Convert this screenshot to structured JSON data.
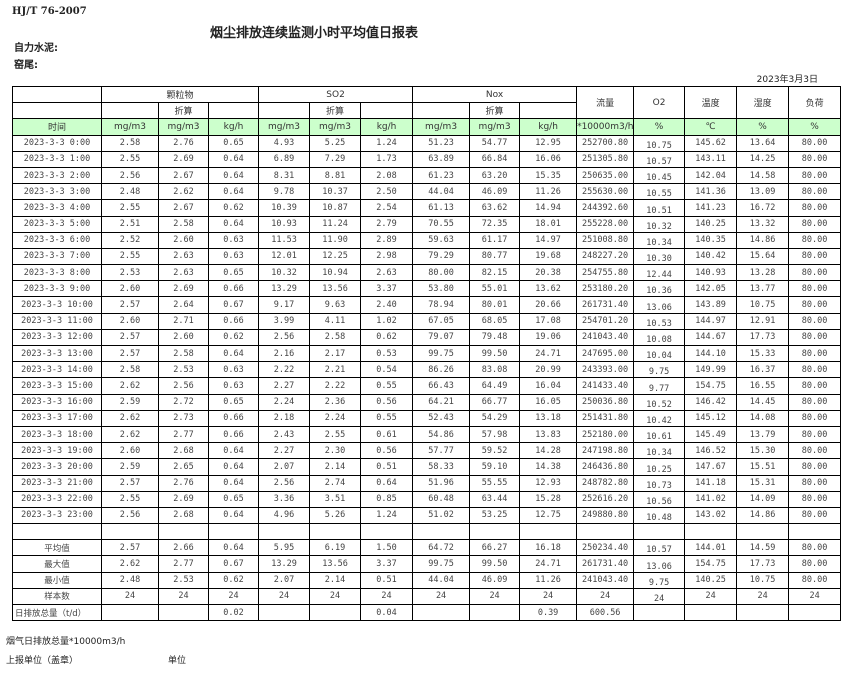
{
  "header": {
    "standard": "HJ/T  76-2007",
    "title": "烟尘排放连续监测小时平均值日报表",
    "company": "自力水泥:",
    "kiln": "窑尾:",
    "date": "2023年3月3日"
  },
  "table": {
    "groups": [
      "颗粒物",
      "SO2",
      "Nox"
    ],
    "converted_label": "折算",
    "single_columns": [
      "流量",
      "O2",
      "温度",
      "湿度",
      "负荷"
    ],
    "units": [
      "时间",
      "mg/m3",
      "mg/m3",
      "kg/h",
      "mg/m3",
      "mg/m3",
      "kg/h",
      "mg/m3",
      "mg/m3",
      "kg/h",
      "*10000m3/h",
      "%",
      "℃",
      "%",
      "%"
    ],
    "rows": [
      [
        "2023-3-3 0:00",
        "2.58",
        "2.76",
        "0.65",
        "4.93",
        "5.25",
        "1.24",
        "51.23",
        "54.77",
        "12.95",
        "252700.80",
        "10.75",
        "145.62",
        "13.64",
        "80.00"
      ],
      [
        "2023-3-3 1:00",
        "2.55",
        "2.69",
        "0.64",
        "6.89",
        "7.29",
        "1.73",
        "63.89",
        "66.84",
        "16.06",
        "251305.80",
        "10.57",
        "143.11",
        "14.25",
        "80.00"
      ],
      [
        "2023-3-3 2:00",
        "2.56",
        "2.67",
        "0.64",
        "8.31",
        "8.81",
        "2.08",
        "61.23",
        "63.20",
        "15.35",
        "250635.00",
        "10.45",
        "142.04",
        "14.58",
        "80.00"
      ],
      [
        "2023-3-3 3:00",
        "2.48",
        "2.62",
        "0.64",
        "9.78",
        "10.37",
        "2.50",
        "44.04",
        "46.09",
        "11.26",
        "255630.00",
        "10.55",
        "141.36",
        "13.09",
        "80.00"
      ],
      [
        "2023-3-3 4:00",
        "2.55",
        "2.67",
        "0.62",
        "10.39",
        "10.87",
        "2.54",
        "61.13",
        "63.62",
        "14.94",
        "244392.60",
        "10.51",
        "141.23",
        "16.72",
        "80.00"
      ],
      [
        "2023-3-3 5:00",
        "2.51",
        "2.58",
        "0.64",
        "10.93",
        "11.24",
        "2.79",
        "70.55",
        "72.35",
        "18.01",
        "255228.00",
        "10.32",
        "140.25",
        "13.32",
        "80.00"
      ],
      [
        "2023-3-3 6:00",
        "2.52",
        "2.60",
        "0.63",
        "11.53",
        "11.90",
        "2.89",
        "59.63",
        "61.17",
        "14.97",
        "251008.80",
        "10.34",
        "140.35",
        "14.86",
        "80.00"
      ],
      [
        "2023-3-3 7:00",
        "2.55",
        "2.63",
        "0.63",
        "12.01",
        "12.25",
        "2.98",
        "79.29",
        "80.77",
        "19.68",
        "248227.20",
        "10.30",
        "140.42",
        "15.64",
        "80.00"
      ],
      [
        "2023-3-3 8:00",
        "2.53",
        "2.63",
        "0.65",
        "10.32",
        "10.94",
        "2.63",
        "80.00",
        "82.15",
        "20.38",
        "254755.80",
        "12.44",
        "140.93",
        "13.28",
        "80.00"
      ],
      [
        "2023-3-3 9:00",
        "2.60",
        "2.69",
        "0.66",
        "13.29",
        "13.56",
        "3.37",
        "53.80",
        "55.01",
        "13.62",
        "253180.20",
        "10.36",
        "142.05",
        "13.77",
        "80.00"
      ],
      [
        "2023-3-3 10:00",
        "2.57",
        "2.64",
        "0.67",
        "9.17",
        "9.63",
        "2.40",
        "78.94",
        "80.01",
        "20.66",
        "261731.40",
        "13.06",
        "143.89",
        "10.75",
        "80.00"
      ],
      [
        "2023-3-3 11:00",
        "2.60",
        "2.71",
        "0.66",
        "3.99",
        "4.11",
        "1.02",
        "67.05",
        "68.05",
        "17.08",
        "254701.20",
        "10.53",
        "144.97",
        "12.91",
        "80.00"
      ],
      [
        "2023-3-3 12:00",
        "2.57",
        "2.60",
        "0.62",
        "2.56",
        "2.58",
        "0.62",
        "79.07",
        "79.48",
        "19.06",
        "241043.40",
        "10.08",
        "144.67",
        "17.73",
        "80.00"
      ],
      [
        "2023-3-3 13:00",
        "2.57",
        "2.58",
        "0.64",
        "2.16",
        "2.17",
        "0.53",
        "99.75",
        "99.50",
        "24.71",
        "247695.00",
        "10.04",
        "144.10",
        "15.33",
        "80.00"
      ],
      [
        "2023-3-3 14:00",
        "2.58",
        "2.53",
        "0.63",
        "2.22",
        "2.21",
        "0.54",
        "86.26",
        "83.08",
        "20.99",
        "243393.00",
        "9.75",
        "149.99",
        "16.37",
        "80.00"
      ],
      [
        "2023-3-3 15:00",
        "2.62",
        "2.56",
        "0.63",
        "2.27",
        "2.22",
        "0.55",
        "66.43",
        "64.49",
        "16.04",
        "241433.40",
        "9.77",
        "154.75",
        "16.55",
        "80.00"
      ],
      [
        "2023-3-3 16:00",
        "2.59",
        "2.72",
        "0.65",
        "2.24",
        "2.36",
        "0.56",
        "64.21",
        "66.77",
        "16.05",
        "250036.80",
        "10.52",
        "146.42",
        "14.45",
        "80.00"
      ],
      [
        "2023-3-3 17:00",
        "2.62",
        "2.73",
        "0.66",
        "2.18",
        "2.24",
        "0.55",
        "52.43",
        "54.29",
        "13.18",
        "251431.80",
        "10.42",
        "145.12",
        "14.08",
        "80.00"
      ],
      [
        "2023-3-3 18:00",
        "2.62",
        "2.77",
        "0.66",
        "2.43",
        "2.55",
        "0.61",
        "54.86",
        "57.98",
        "13.83",
        "252180.00",
        "10.61",
        "145.49",
        "13.79",
        "80.00"
      ],
      [
        "2023-3-3 19:00",
        "2.60",
        "2.68",
        "0.64",
        "2.27",
        "2.30",
        "0.56",
        "57.77",
        "59.52",
        "14.28",
        "247198.80",
        "10.34",
        "146.52",
        "15.30",
        "80.00"
      ],
      [
        "2023-3-3 20:00",
        "2.59",
        "2.65",
        "0.64",
        "2.07",
        "2.14",
        "0.51",
        "58.33",
        "59.10",
        "14.38",
        "246436.80",
        "10.25",
        "147.67",
        "15.51",
        "80.00"
      ],
      [
        "2023-3-3 21:00",
        "2.57",
        "2.76",
        "0.64",
        "2.56",
        "2.74",
        "0.64",
        "51.96",
        "55.55",
        "12.93",
        "248782.80",
        "10.73",
        "141.18",
        "15.31",
        "80.00"
      ],
      [
        "2023-3-3 22:00",
        "2.55",
        "2.69",
        "0.65",
        "3.36",
        "3.51",
        "0.85",
        "60.48",
        "63.44",
        "15.28",
        "252616.20",
        "10.56",
        "141.02",
        "14.09",
        "80.00"
      ],
      [
        "2023-3-3 23:00",
        "2.56",
        "2.68",
        "0.64",
        "4.96",
        "5.26",
        "1.24",
        "51.02",
        "53.25",
        "12.75",
        "249880.80",
        "10.48",
        "143.02",
        "14.86",
        "80.00"
      ]
    ],
    "summary": [
      [
        "平均值",
        "2.57",
        "2.66",
        "0.64",
        "5.95",
        "6.19",
        "1.50",
        "64.72",
        "66.27",
        "16.18",
        "250234.40",
        "10.57",
        "144.01",
        "14.59",
        "80.00"
      ],
      [
        "最大值",
        "2.62",
        "2.77",
        "0.67",
        "13.29",
        "13.56",
        "3.37",
        "99.75",
        "99.50",
        "24.71",
        "261731.40",
        "13.06",
        "154.75",
        "17.73",
        "80.00"
      ],
      [
        "最小值",
        "2.48",
        "2.53",
        "0.62",
        "2.07",
        "2.14",
        "0.51",
        "44.04",
        "46.09",
        "11.26",
        "241043.40",
        "9.75",
        "140.25",
        "10.75",
        "80.00"
      ],
      [
        "样本数",
        "24",
        "24",
        "24",
        "24",
        "24",
        "24",
        "24",
        "24",
        "24",
        "24",
        "24",
        "24",
        "24",
        "24"
      ],
      [
        "日排放总量（t/d）",
        "",
        "",
        "0.02",
        "",
        "",
        "0.04",
        "",
        "",
        "0.39",
        "600.56",
        "",
        "",
        "",
        ""
      ]
    ]
  },
  "footer": {
    "flue_gas_total": "烟气日排放总量*10000m3/h",
    "reporting_unit": "上报单位（盖章）",
    "unit": "单位"
  },
  "colors": {
    "unit_row_bg": "#ccffcc",
    "border": "#000000"
  }
}
